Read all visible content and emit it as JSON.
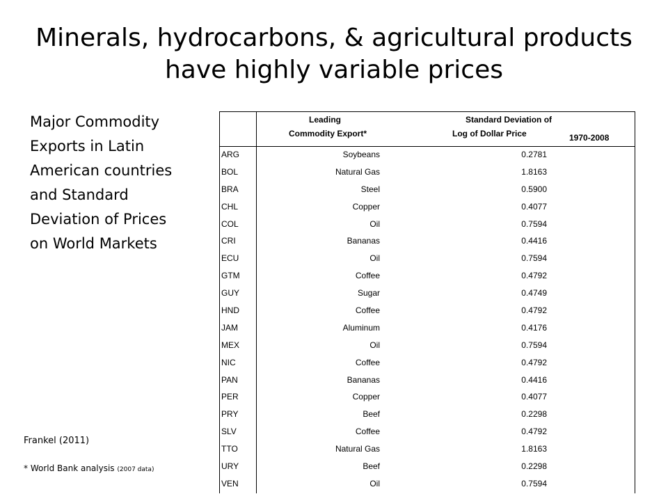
{
  "slide": {
    "title_line1": "Minerals, hydrocarbons, & agricultural products",
    "title_line2": "have highly variable prices",
    "subtitle_lines": [
      "Major Commodity",
      "Exports in Latin",
      "American countries",
      "and Standard",
      "Deviation of Prices",
      "on World Markets"
    ],
    "source": "Frankel (2011)",
    "note_main": "* World Bank analysis",
    "note_small": "(2007 data)"
  },
  "table": {
    "header": {
      "commodity_line1": "Leading",
      "commodity_line2": "Commodity Export*",
      "sd_line1": "Standard Deviation of",
      "sd_line2": "Log of Dollar Price",
      "years": "1970-2008"
    },
    "rows": [
      {
        "country": "ARG",
        "commodity": "Soybeans",
        "sd": "0.2781"
      },
      {
        "country": "BOL",
        "commodity": "Natural Gas",
        "sd": "1.8163"
      },
      {
        "country": "BRA",
        "commodity": "Steel",
        "sd": "0.5900"
      },
      {
        "country": "CHL",
        "commodity": "Copper",
        "sd": "0.4077"
      },
      {
        "country": "COL",
        "commodity": "Oil",
        "sd": "0.7594"
      },
      {
        "country": "CRI",
        "commodity": "Bananas",
        "sd": "0.4416"
      },
      {
        "country": "ECU",
        "commodity": "Oil",
        "sd": "0.7594"
      },
      {
        "country": "GTM",
        "commodity": "Coffee",
        "sd": "0.4792"
      },
      {
        "country": "GUY",
        "commodity": "Sugar",
        "sd": "0.4749"
      },
      {
        "country": "HND",
        "commodity": "Coffee",
        "sd": "0.4792"
      },
      {
        "country": "JAM",
        "commodity": "Aluminum",
        "sd": "0.4176"
      },
      {
        "country": "MEX",
        "commodity": "Oil",
        "sd": "0.7594"
      },
      {
        "country": "NIC",
        "commodity": "Coffee",
        "sd": "0.4792"
      },
      {
        "country": "PAN",
        "commodity": "Bananas",
        "sd": "0.4416"
      },
      {
        "country": "PER",
        "commodity": "Copper",
        "sd": "0.4077"
      },
      {
        "country": "PRY",
        "commodity": "Beef",
        "sd": "0.2298"
      },
      {
        "country": "SLV",
        "commodity": "Coffee",
        "sd": "0.4792"
      },
      {
        "country": "TTO",
        "commodity": "Natural Gas",
        "sd": "1.8163"
      },
      {
        "country": "URY",
        "commodity": "Beef",
        "sd": "0.2298"
      },
      {
        "country": "VEN",
        "commodity": "Oil",
        "sd": "0.7594"
      }
    ]
  }
}
